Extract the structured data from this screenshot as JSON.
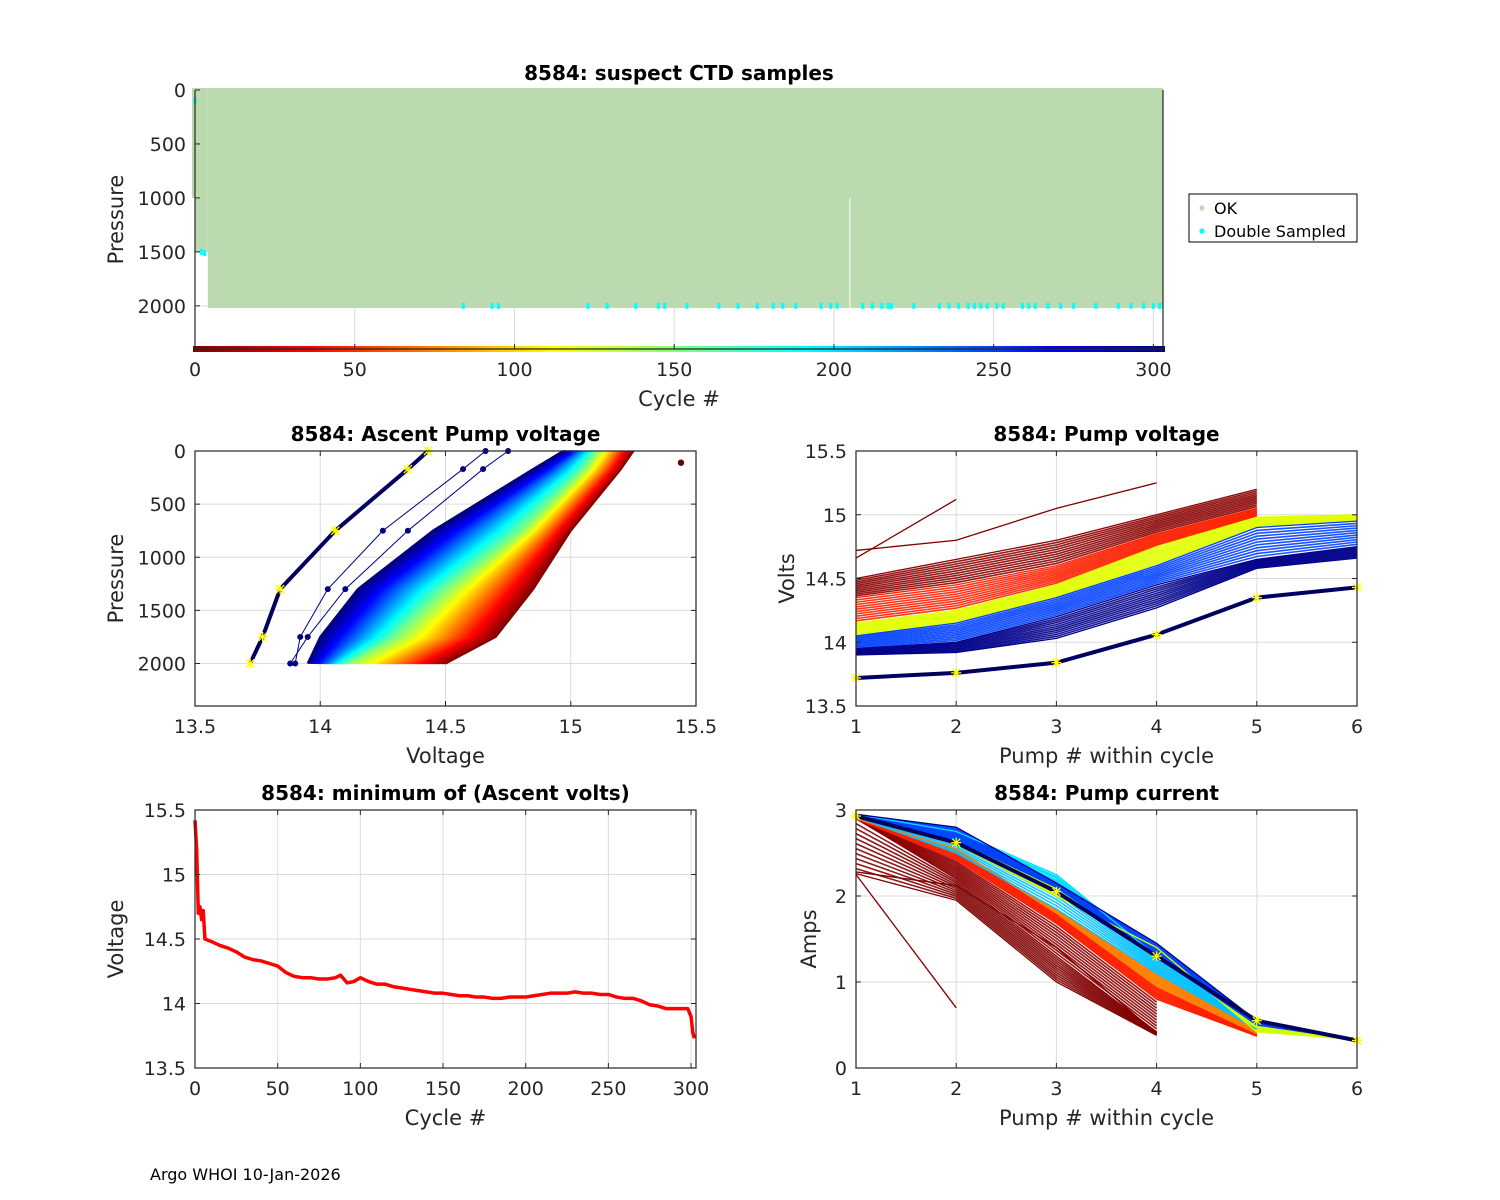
{
  "footer": "Argo WHOI 10-Jan-2026",
  "colors": {
    "ok": "#bbdab0",
    "double_sampled": "#00ffff",
    "min_volts_line": "#ff0000",
    "highlight_star": "#ffff00",
    "grid": "#dcdcdc",
    "axis": "#262626"
  },
  "chart_data": [
    {
      "id": "suspect-ctd",
      "type": "scatter",
      "title": "8584: suspect CTD samples",
      "xlabel": "Cycle #",
      "ylabel": "Pressure",
      "xlim": [
        0,
        303
      ],
      "ylim": [
        0,
        2400
      ],
      "y_reversed": true,
      "xticks": [
        0,
        50,
        100,
        150,
        200,
        250,
        300
      ],
      "yticks": [
        0,
        500,
        1000,
        1500,
        2000
      ],
      "yticklabels": [
        "0",
        "500",
        "1000",
        "1500",
        "2000"
      ],
      "grid": true,
      "legend": {
        "placement": "outside-right",
        "entries": [
          {
            "label": "OK",
            "color": "#bbdab0"
          },
          {
            "label": "Double Sampled",
            "color": "#00ffff"
          }
        ]
      },
      "ok_region": {
        "cycles": [
          0,
          303
        ],
        "pressure_top": 0,
        "pressure_bottom": 2020,
        "early_cycles": [
          {
            "cycle_from": 0,
            "cycle_to": 1,
            "max_pressure": 1000
          },
          {
            "cycle_from": 1,
            "cycle_to": 4,
            "max_pressure": 1500
          }
        ],
        "gap_cycle": 205,
        "gap_pressure_from": 1000
      },
      "double_sampled_points": [
        {
          "cycle": 0,
          "pressure": 100
        },
        {
          "cycle": 2,
          "pressure": 1500
        },
        {
          "cycle": 3,
          "pressure": 1510
        },
        {
          "cycle": 84,
          "pressure": 2000
        },
        {
          "cycle": 93,
          "pressure": 2000
        },
        {
          "cycle": 95,
          "pressure": 2000
        },
        {
          "cycle": 123,
          "pressure": 2000
        },
        {
          "cycle": 129,
          "pressure": 2000
        },
        {
          "cycle": 138,
          "pressure": 2000
        },
        {
          "cycle": 145,
          "pressure": 2000
        },
        {
          "cycle": 147,
          "pressure": 2000
        },
        {
          "cycle": 154,
          "pressure": 2000
        },
        {
          "cycle": 164,
          "pressure": 2000
        },
        {
          "cycle": 170,
          "pressure": 2000
        },
        {
          "cycle": 176,
          "pressure": 2000
        },
        {
          "cycle": 181,
          "pressure": 2000
        },
        {
          "cycle": 184,
          "pressure": 2000
        },
        {
          "cycle": 188,
          "pressure": 2000
        },
        {
          "cycle": 196,
          "pressure": 2000
        },
        {
          "cycle": 199,
          "pressure": 2000
        },
        {
          "cycle": 201,
          "pressure": 2000
        },
        {
          "cycle": 209,
          "pressure": 2000
        },
        {
          "cycle": 212,
          "pressure": 2000
        },
        {
          "cycle": 215,
          "pressure": 2000
        },
        {
          "cycle": 217,
          "pressure": 2000
        },
        {
          "cycle": 218,
          "pressure": 2000
        },
        {
          "cycle": 225,
          "pressure": 2000
        },
        {
          "cycle": 233,
          "pressure": 2000
        },
        {
          "cycle": 236,
          "pressure": 2000
        },
        {
          "cycle": 239,
          "pressure": 2000
        },
        {
          "cycle": 242,
          "pressure": 2000
        },
        {
          "cycle": 244,
          "pressure": 2000
        },
        {
          "cycle": 246,
          "pressure": 2000
        },
        {
          "cycle": 248,
          "pressure": 2000
        },
        {
          "cycle": 251,
          "pressure": 2000
        },
        {
          "cycle": 253,
          "pressure": 2000
        },
        {
          "cycle": 259,
          "pressure": 2000
        },
        {
          "cycle": 261,
          "pressure": 2000
        },
        {
          "cycle": 263,
          "pressure": 2000
        },
        {
          "cycle": 267,
          "pressure": 2000
        },
        {
          "cycle": 271,
          "pressure": 2000
        },
        {
          "cycle": 275,
          "pressure": 2000
        },
        {
          "cycle": 282,
          "pressure": 2000
        },
        {
          "cycle": 289,
          "pressure": 2000
        },
        {
          "cycle": 293,
          "pressure": 2000
        },
        {
          "cycle": 297,
          "pressure": 2000
        },
        {
          "cycle": 300,
          "pressure": 2000
        },
        {
          "cycle": 302,
          "pressure": 2000
        }
      ],
      "cycle_colorbar": {
        "pressure": 2400,
        "colormap": "jet-reversed",
        "cycles": [
          0,
          303
        ]
      }
    },
    {
      "id": "ascent-pump-voltage",
      "type": "line",
      "title": "8584: Ascent Pump voltage",
      "xlabel": "Voltage",
      "ylabel": "Pressure",
      "xlim": [
        13.5,
        15.5
      ],
      "ylim": [
        0,
        2400
      ],
      "y_reversed": true,
      "xticks": [
        13.5,
        14,
        14.5,
        15,
        15.5
      ],
      "xticklabels": [
        "13.5",
        "14",
        "14.5",
        "15",
        "15.5"
      ],
      "yticks": [
        0,
        500,
        1000,
        1500,
        2000
      ],
      "grid": true,
      "colormap": "jet (cycle-coded, early=dark red, late=dark blue)",
      "pressures": [
        2000,
        1750,
        1300,
        750,
        170,
        0
      ],
      "envelope": {
        "latest_cycle": [
          13.72,
          13.77,
          13.84,
          14.06,
          14.35,
          14.43
        ],
        "blue_band": [
          13.95,
          14.0,
          14.15,
          14.45,
          14.85,
          14.97
        ],
        "red_band": [
          14.1,
          14.3,
          14.5,
          14.8,
          15.05,
          15.1
        ],
        "earliest_cycle": [
          14.5,
          14.7,
          14.85,
          15.0,
          15.2,
          15.25
        ]
      },
      "highlighted_profile": {
        "voltages": [
          13.72,
          13.77,
          13.84,
          14.06,
          14.35,
          14.43
        ],
        "pressures": [
          2000,
          1750,
          1300,
          750,
          170,
          0
        ]
      },
      "outlier_point": {
        "voltage": 15.44,
        "pressure": 110
      }
    },
    {
      "id": "pump-voltage",
      "type": "line",
      "title": "8584: Pump voltage",
      "xlabel": "Pump # within cycle",
      "ylabel": "Volts",
      "xlim": [
        1,
        6
      ],
      "ylim": [
        13.5,
        15.5
      ],
      "xticks": [
        1,
        2,
        3,
        4,
        5,
        6
      ],
      "yticks": [
        13.5,
        14,
        14.5,
        15,
        15.5
      ],
      "yticklabels": [
        "13.5",
        "14",
        "14.5",
        "15",
        "15.5"
      ],
      "grid": true,
      "colormap": "jet (cycle-coded)",
      "series": [
        {
          "name": "early-upper",
          "color": "#800000",
          "x": [
            1,
            2,
            3,
            4
          ],
          "values": [
            14.72,
            14.8,
            15.05,
            15.25
          ]
        },
        {
          "name": "early-short",
          "color": "#800000",
          "x": [
            1,
            2
          ],
          "values": [
            14.66,
            15.12
          ]
        },
        {
          "name": "earliest-band-top",
          "color": "#8b0000",
          "x": [
            1,
            2,
            3,
            4,
            5
          ],
          "values": [
            14.5,
            14.65,
            14.8,
            15.0,
            15.2
          ]
        },
        {
          "name": "red-band",
          "color": "#ff2000",
          "x": [
            1,
            2,
            3,
            4,
            5
          ],
          "values": [
            14.35,
            14.45,
            14.6,
            14.85,
            15.05
          ]
        },
        {
          "name": "yellow-band",
          "color": "#e0ff00",
          "x": [
            1,
            2,
            3,
            4,
            5,
            6
          ],
          "values": [
            14.15,
            14.25,
            14.45,
            14.75,
            14.98,
            15.0
          ]
        },
        {
          "name": "blue-band",
          "color": "#0040ff",
          "x": [
            1,
            2,
            3,
            4,
            5,
            6
          ],
          "values": [
            14.05,
            14.15,
            14.35,
            14.6,
            14.9,
            14.95
          ]
        },
        {
          "name": "late-band",
          "color": "#00008b",
          "x": [
            1,
            2,
            3,
            4,
            5,
            6
          ],
          "values": [
            13.95,
            14.0,
            14.2,
            14.45,
            14.65,
            14.75
          ]
        },
        {
          "name": "late-lower",
          "color": "#00008b",
          "x": [
            1,
            2,
            3,
            4,
            5,
            6
          ],
          "values": [
            13.9,
            13.92,
            14.03,
            14.27,
            14.58,
            14.66
          ]
        },
        {
          "name": "latest-cycle",
          "color": "#000060",
          "x": [
            1,
            2,
            3,
            4,
            5,
            6
          ],
          "values": [
            13.72,
            13.76,
            13.84,
            14.06,
            14.35,
            14.43
          ],
          "highlight": true
        }
      ]
    },
    {
      "id": "min-ascent-volts",
      "type": "line",
      "title": "8584: minimum of (Ascent volts)",
      "xlabel": "Cycle #",
      "ylabel": "Voltage",
      "xlim": [
        0,
        303
      ],
      "ylim": [
        13.5,
        15.5
      ],
      "xticks": [
        0,
        50,
        100,
        150,
        200,
        250,
        300
      ],
      "yticks": [
        13.5,
        14,
        14.5,
        15,
        15.5
      ],
      "yticklabels": [
        "13.5",
        "14",
        "14.5",
        "15",
        "15.5"
      ],
      "grid": true,
      "x": [
        0,
        1,
        2,
        3,
        4,
        5,
        6,
        10,
        15,
        20,
        25,
        30,
        35,
        40,
        45,
        50,
        55,
        60,
        65,
        70,
        75,
        80,
        85,
        88,
        92,
        96,
        100,
        105,
        110,
        115,
        120,
        125,
        130,
        135,
        140,
        145,
        150,
        155,
        160,
        165,
        170,
        175,
        180,
        185,
        190,
        195,
        200,
        205,
        210,
        215,
        220,
        225,
        230,
        235,
        240,
        245,
        250,
        255,
        260,
        265,
        270,
        275,
        280,
        285,
        290,
        295,
        298,
        300,
        301,
        302
      ],
      "values": [
        15.42,
        15.2,
        14.7,
        14.75,
        14.65,
        14.72,
        14.5,
        14.48,
        14.45,
        14.43,
        14.4,
        14.36,
        14.34,
        14.33,
        14.31,
        14.29,
        14.24,
        14.21,
        14.2,
        14.2,
        14.19,
        14.19,
        14.2,
        14.22,
        14.16,
        14.17,
        14.2,
        14.17,
        14.15,
        14.15,
        14.13,
        14.12,
        14.11,
        14.1,
        14.09,
        14.08,
        14.08,
        14.07,
        14.06,
        14.06,
        14.05,
        14.05,
        14.04,
        14.04,
        14.05,
        14.05,
        14.05,
        14.06,
        14.07,
        14.08,
        14.08,
        14.08,
        14.09,
        14.08,
        14.08,
        14.07,
        14.07,
        14.05,
        14.04,
        14.04,
        14.02,
        13.99,
        13.98,
        13.96,
        13.96,
        13.96,
        13.96,
        13.9,
        13.78,
        13.73
      ]
    },
    {
      "id": "pump-current",
      "type": "line",
      "title": "8584: Pump current",
      "xlabel": "Pump # within cycle",
      "ylabel": "Amps",
      "xlim": [
        1,
        6
      ],
      "ylim": [
        0,
        3
      ],
      "xticks": [
        1,
        2,
        3,
        4,
        5,
        6
      ],
      "yticks": [
        0,
        1,
        2,
        3
      ],
      "grid": true,
      "colormap": "jet (cycle-coded)",
      "series": [
        {
          "name": "early-short",
          "color": "#800000",
          "x": [
            1,
            2
          ],
          "values": [
            2.25,
            0.7
          ]
        },
        {
          "name": "early-a",
          "color": "#800000",
          "x": [
            1,
            2,
            3,
            4
          ],
          "values": [
            2.28,
            2.12,
            1.4,
            0.4
          ]
        },
        {
          "name": "early-b",
          "color": "#800000",
          "x": [
            1,
            2,
            3,
            4
          ],
          "values": [
            2.26,
            1.95,
            1.0,
            0.38
          ]
        },
        {
          "name": "early-band",
          "color": "#8b0000",
          "x": [
            1,
            2,
            3,
            4
          ],
          "values": [
            2.9,
            2.2,
            1.3,
            0.42
          ]
        },
        {
          "name": "red-band",
          "color": "#ff2000",
          "x": [
            1,
            2,
            3,
            4,
            5
          ],
          "values": [
            2.9,
            2.42,
            1.68,
            0.8,
            0.37
          ]
        },
        {
          "name": "orange-band",
          "color": "#ff8000",
          "x": [
            1,
            2,
            3,
            4,
            5
          ],
          "values": [
            2.9,
            2.55,
            1.8,
            0.95,
            0.4
          ]
        },
        {
          "name": "cyan-band",
          "color": "#00c0ff",
          "x": [
            1,
            2,
            3,
            4,
            5
          ],
          "values": [
            2.92,
            2.5,
            1.85,
            1.1,
            0.45
          ]
        },
        {
          "name": "cyan-top",
          "color": "#00e0ff",
          "x": [
            1,
            2,
            3,
            4,
            5
          ],
          "values": [
            2.95,
            2.75,
            2.25,
            1.3,
            0.5
          ]
        },
        {
          "name": "yellow-line",
          "color": "#d0ff00",
          "x": [
            1,
            2,
            3,
            4,
            5,
            6
          ],
          "values": [
            2.92,
            2.6,
            2.0,
            1.4,
            0.42,
            0.33
          ]
        },
        {
          "name": "blue-band",
          "color": "#0040ff",
          "x": [
            1,
            2,
            3,
            4,
            5,
            6
          ],
          "values": [
            2.93,
            2.65,
            2.1,
            1.3,
            0.5,
            0.33
          ]
        },
        {
          "name": "late-band",
          "color": "#00008b",
          "x": [
            1,
            2,
            3,
            4,
            5,
            6
          ],
          "values": [
            2.95,
            2.8,
            2.15,
            1.45,
            0.55,
            0.32
          ]
        },
        {
          "name": "latest-cycle",
          "color": "#000060",
          "x": [
            1,
            2,
            3,
            4,
            5,
            6
          ],
          "values": [
            2.93,
            2.62,
            2.05,
            1.3,
            0.55,
            0.32
          ],
          "highlight": true
        }
      ]
    }
  ]
}
